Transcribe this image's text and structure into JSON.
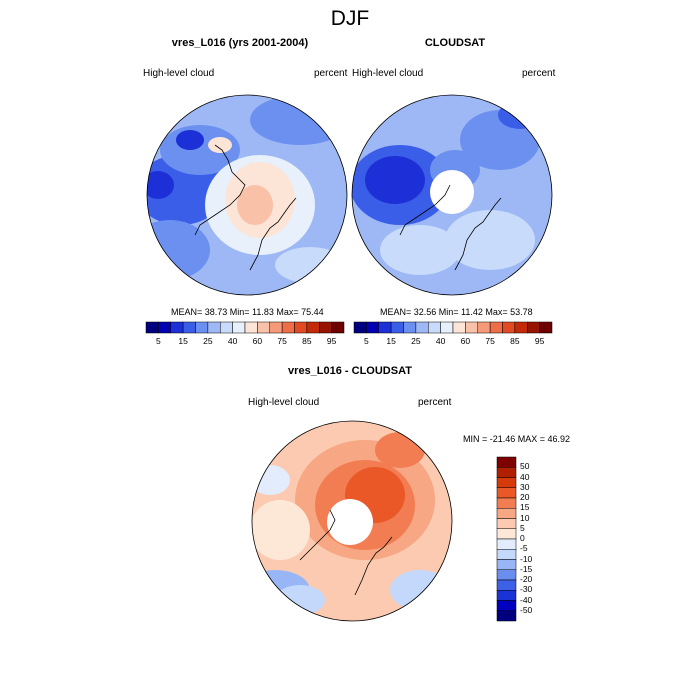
{
  "main_title": "DJF",
  "panels": [
    {
      "title": "vres_L016 (yrs 2001-2004)",
      "left_label": "High-level cloud",
      "right_label": "percent",
      "stats": "MEAN=  38.73  Min=  11.83  Max=  75.44"
    },
    {
      "title": "CLOUDSAT",
      "left_label": "High-level cloud",
      "right_label": "percent",
      "stats": "MEAN=  32.56  Min=  11.42  Max=  53.78"
    },
    {
      "title": "vres_L016 - CLOUDSAT",
      "left_label": "High-level cloud",
      "right_label": "percent",
      "stats": "MIN = -21.46 MAX =  46.92"
    }
  ],
  "colors": {
    "abs_colorbar": [
      "#00007f",
      "#0000b2",
      "#1d2fd6",
      "#3a5ee8",
      "#6b90f0",
      "#9db8f5",
      "#c8dbfa",
      "#e8f0fc",
      "#fce4d6",
      "#f9c2a8",
      "#f49a78",
      "#ee6e48",
      "#e14a22",
      "#c22a08",
      "#951500",
      "#6e0000"
    ],
    "diff_colorbar": [
      "#00007f",
      "#0000c0",
      "#1a33d6",
      "#3c61e6",
      "#6a8ef0",
      "#98b6f5",
      "#c3d8fa",
      "#e2ecfc",
      "#fde8d8",
      "#fbcab0",
      "#f7a783",
      "#f27d52",
      "#ea5828",
      "#d63a0a",
      "#b01f00",
      "#7f0000"
    ]
  },
  "chart_data": [
    {
      "type": "heatmap",
      "title": "vres_L016 (yrs 2001-2004)",
      "variable": "High-level cloud",
      "units": "percent",
      "projection": "north polar stereographic",
      "mean": 38.73,
      "min": 11.83,
      "max": 75.44,
      "colorbar_levels": [
        5,
        10,
        15,
        20,
        25,
        30,
        40,
        50,
        60,
        70,
        75,
        80,
        85,
        90,
        95
      ],
      "colorbar_labels": [
        "5",
        "15",
        "25",
        "40",
        "60",
        "75",
        "85",
        "95"
      ]
    },
    {
      "type": "heatmap",
      "title": "CLOUDSAT",
      "variable": "High-level cloud",
      "units": "percent",
      "projection": "north polar stereographic",
      "mean": 32.56,
      "min": 11.42,
      "max": 53.78,
      "colorbar_levels": [
        5,
        10,
        15,
        20,
        25,
        30,
        40,
        50,
        60,
        70,
        75,
        80,
        85,
        90,
        95
      ],
      "colorbar_labels": [
        "5",
        "15",
        "25",
        "40",
        "60",
        "75",
        "85",
        "95"
      ]
    },
    {
      "type": "heatmap",
      "title": "vres_L016 - CLOUDSAT",
      "variable": "High-level cloud",
      "units": "percent",
      "projection": "north polar stereographic",
      "min": -21.46,
      "max": 46.92,
      "colorbar_levels": [
        -50,
        -40,
        -30,
        -20,
        -15,
        -10,
        -5,
        0,
        5,
        10,
        15,
        20,
        30,
        40,
        50
      ],
      "colorbar_labels": [
        "50",
        "40",
        "30",
        "20",
        "15",
        "10",
        "5",
        "0",
        "-5",
        "-10",
        "-15",
        "-20",
        "-30",
        "-40",
        "-50"
      ]
    }
  ]
}
